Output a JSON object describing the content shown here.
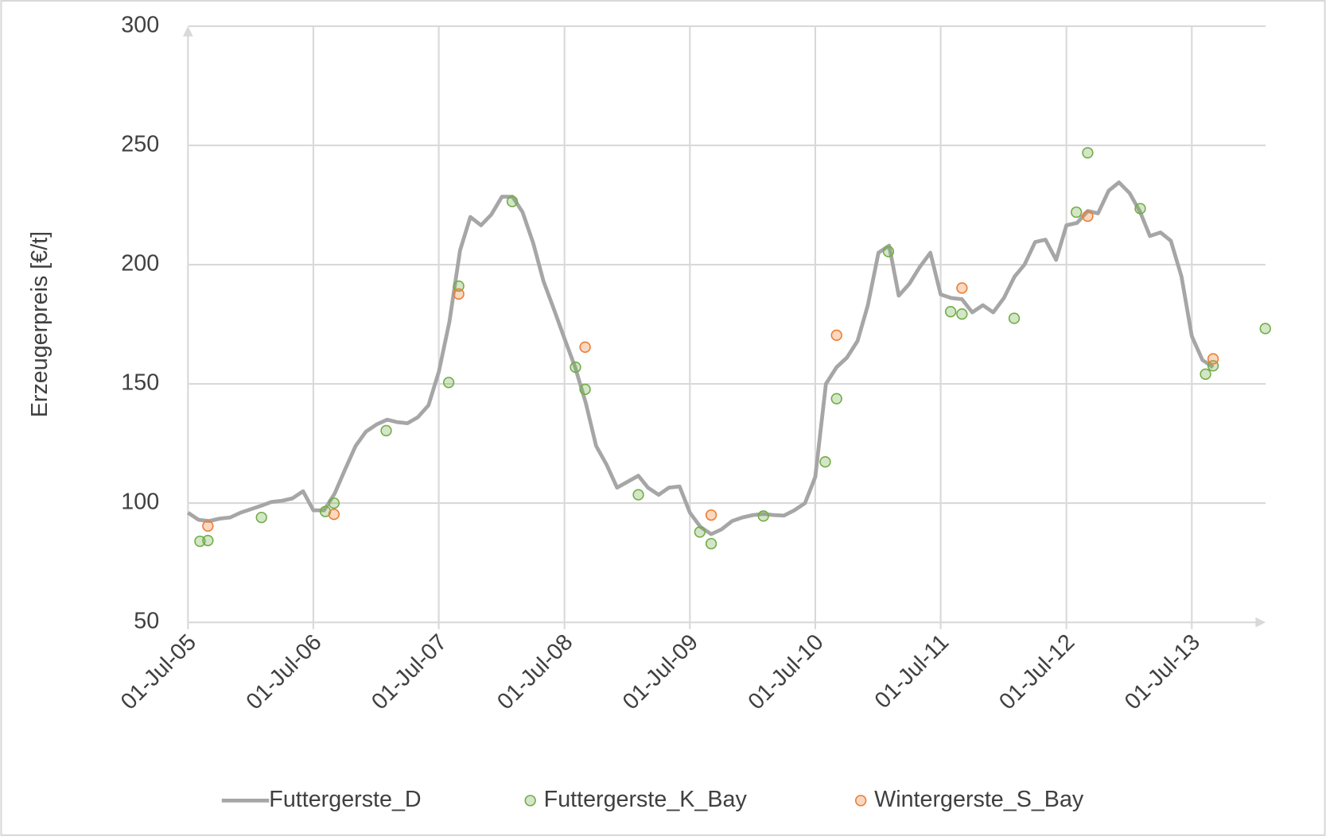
{
  "chart_data": {
    "type": "line",
    "y_label": "Erzeugerpreis [€/t]",
    "ylim": [
      50,
      300
    ],
    "yticks": [
      50,
      100,
      150,
      200,
      250,
      300
    ],
    "xlim": [
      "2005-07-01",
      "2014-02-01"
    ],
    "xticks": [
      {
        "value": "2005-07-01",
        "label": "01-Jul-05"
      },
      {
        "value": "2006-07-01",
        "label": "01-Jul-06"
      },
      {
        "value": "2007-07-01",
        "label": "01-Jul-07"
      },
      {
        "value": "2008-07-01",
        "label": "01-Jul-08"
      },
      {
        "value": "2009-07-01",
        "label": "01-Jul-09"
      },
      {
        "value": "2010-07-01",
        "label": "01-Jul-10"
      },
      {
        "value": "2011-07-01",
        "label": "01-Jul-11"
      },
      {
        "value": "2012-07-01",
        "label": "01-Jul-12"
      },
      {
        "value": "2013-07-01",
        "label": "01-Jul-13"
      }
    ],
    "grid": true,
    "legend": "bottom",
    "series": [
      {
        "name": "Futtergerste_D",
        "type": "line",
        "color": "#a6a6a6",
        "x": [
          "2005-07-01",
          "2005-08-01",
          "2005-09-01",
          "2005-10-01",
          "2005-11-01",
          "2005-12-01",
          "2006-01-01",
          "2006-02-01",
          "2006-03-01",
          "2006-04-01",
          "2006-05-01",
          "2006-06-01",
          "2006-07-01",
          "2006-08-01",
          "2006-09-01",
          "2006-10-01",
          "2006-11-01",
          "2006-12-01",
          "2007-01-01",
          "2007-02-01",
          "2007-03-01",
          "2007-04-01",
          "2007-05-01",
          "2007-06-01",
          "2007-07-01",
          "2007-08-01",
          "2007-09-01",
          "2007-10-01",
          "2007-11-01",
          "2007-12-01",
          "2008-01-01",
          "2008-02-01",
          "2008-03-01",
          "2008-04-01",
          "2008-05-01",
          "2008-06-01",
          "2008-07-01",
          "2008-08-01",
          "2008-09-01",
          "2008-10-01",
          "2008-11-01",
          "2008-12-01",
          "2009-01-01",
          "2009-02-01",
          "2009-03-01",
          "2009-04-01",
          "2009-05-01",
          "2009-06-01",
          "2009-07-01",
          "2009-08-01",
          "2009-09-01",
          "2009-10-01",
          "2009-11-01",
          "2009-12-01",
          "2010-01-01",
          "2010-02-01",
          "2010-03-01",
          "2010-04-01",
          "2010-05-01",
          "2010-06-01",
          "2010-07-01",
          "2010-08-01",
          "2010-09-01",
          "2010-10-01",
          "2010-11-01",
          "2010-12-01",
          "2011-01-01",
          "2011-02-01",
          "2011-03-01",
          "2011-04-01",
          "2011-05-01",
          "2011-06-01",
          "2011-07-01",
          "2011-08-01",
          "2011-09-01",
          "2011-10-01",
          "2011-11-01",
          "2011-12-01",
          "2012-01-01",
          "2012-02-01",
          "2012-03-01",
          "2012-04-01",
          "2012-05-01",
          "2012-06-01",
          "2012-07-01",
          "2012-08-01",
          "2012-09-01",
          "2012-10-01",
          "2012-11-01",
          "2012-12-01",
          "2013-01-01",
          "2013-02-01",
          "2013-03-01",
          "2013-04-01",
          "2013-05-01",
          "2013-06-01",
          "2013-07-01",
          "2013-08-01",
          "2013-09-01"
        ],
        "values": [
          96,
          93,
          92.5,
          93.5,
          94,
          96,
          97.5,
          99,
          100.5,
          101,
          102,
          105,
          97,
          97,
          104,
          114,
          124,
          130,
          133,
          135,
          134,
          133.5,
          136,
          141,
          155,
          176,
          206,
          220,
          216.5,
          221,
          228.5,
          228.5,
          222,
          209,
          193,
          181,
          169,
          157,
          142,
          124,
          116,
          106.5,
          109,
          111.5,
          106.5,
          103.5,
          106.5,
          107,
          96,
          90,
          87,
          89,
          92.5,
          94,
          95,
          95.5,
          95,
          94.8,
          97,
          100,
          111,
          150,
          157,
          161,
          168,
          183,
          205,
          208,
          187,
          192,
          199,
          205,
          187.5,
          186,
          185.5,
          180,
          183,
          180,
          186,
          195,
          200,
          209.5,
          210.5,
          202,
          216.5,
          217.5,
          222.5,
          221.5,
          231,
          234.5,
          230,
          222,
          212,
          213.5,
          210,
          195,
          170,
          160,
          157
        ]
      },
      {
        "name": "Futtergerste_K_Bay",
        "type": "scatter",
        "color": "#70ad47",
        "x": [
          "2005-08-05",
          "2005-08-28",
          "2006-01-31",
          "2006-08-05",
          "2006-08-30",
          "2007-01-29",
          "2007-07-30",
          "2007-08-28",
          "2008-01-31",
          "2008-08-02",
          "2008-08-30",
          "2009-02-01",
          "2009-07-30",
          "2009-09-01",
          "2010-01-31",
          "2010-07-30",
          "2010-09-01",
          "2011-01-30",
          "2011-07-30",
          "2011-09-01",
          "2012-01-31",
          "2012-07-30",
          "2012-09-01",
          "2013-02-01",
          "2013-08-10",
          "2013-09-01",
          "2014-01-31"
        ],
        "values": [
          84,
          84.3,
          94,
          96.5,
          100,
          130.4,
          150.6,
          191,
          226.5,
          157,
          147.7,
          103.5,
          87.9,
          83,
          94.6,
          117.3,
          143.8,
          205.5,
          180.3,
          179.3,
          177.5,
          222,
          246.9,
          223.5,
          154.1,
          157.6,
          173.2
        ]
      },
      {
        "name": "Wintergerste_S_Bay",
        "type": "scatter",
        "color": "#ed7d31",
        "x": [
          "2005-08-28",
          "2006-08-30",
          "2007-08-28",
          "2008-08-30",
          "2009-09-01",
          "2010-09-01",
          "2011-09-01",
          "2012-09-01",
          "2013-09-01"
        ],
        "values": [
          90.4,
          95.3,
          187.7,
          165.4,
          95,
          170.4,
          190.2,
          220.3,
          160.5
        ]
      }
    ]
  }
}
